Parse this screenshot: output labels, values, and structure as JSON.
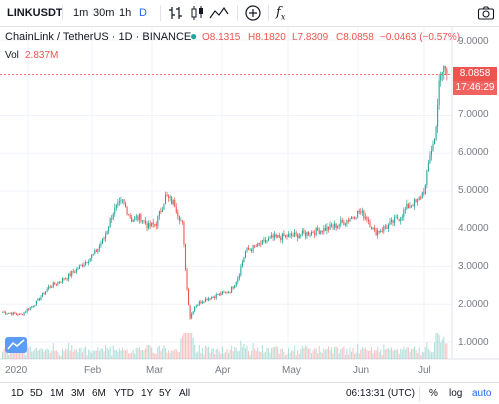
{
  "toolbar": {
    "symbol": "LINKUSDT",
    "intervals": [
      "1m",
      "30m",
      "1h"
    ],
    "interval_dropdown": "D",
    "fx_label": "f"
  },
  "legend": {
    "title": "ChainLink / TetherUS · 1D · BINANCE",
    "open": "O8.1315",
    "high": "H8.1820",
    "low": "L7.8309",
    "close": "C8.0858",
    "change": "−0.0463 (−0.57%)",
    "vol_label": "Vol",
    "vol_value": "2.837M"
  },
  "price_axis": {
    "ticks": [
      "9.0000",
      "8.0000",
      "7.0000",
      "6.0000",
      "5.0000",
      "4.0000",
      "3.0000",
      "2.0000",
      "1.0000"
    ],
    "current_price": "8.0858",
    "countdown": "17:46:29"
  },
  "time_axis": {
    "labels": [
      "2020",
      "Feb",
      "Mar",
      "Apr",
      "May",
      "Jun",
      "Jul"
    ]
  },
  "bottom_bar": {
    "ranges": [
      "1D",
      "5D",
      "1M",
      "3M",
      "6M",
      "YTD",
      "1Y",
      "5Y",
      "All"
    ],
    "clock": "06:13:31 (UTC)",
    "percent": "%",
    "log": "log",
    "auto": "auto"
  },
  "colors": {
    "up": "#26a69a",
    "down": "#ef5350",
    "accent": "#2962ff",
    "text": "#131722",
    "muted": "#787b86"
  },
  "chart_data": {
    "type": "candlestick",
    "title": "ChainLink / TetherUS · 1D · BINANCE",
    "ylim": [
      0.6,
      9.4
    ],
    "x_labels": [
      "2020",
      "Feb",
      "Mar",
      "Apr",
      "May",
      "Jun",
      "Jul"
    ],
    "series": [
      {
        "name": "price",
        "anchors": [
          [
            0,
            1.8
          ],
          [
            12,
            1.72
          ],
          [
            22,
            2.05
          ],
          [
            30,
            2.45
          ],
          [
            42,
            2.72
          ],
          [
            52,
            3.05
          ],
          [
            60,
            3.35
          ],
          [
            66,
            3.75
          ],
          [
            72,
            4.45
          ],
          [
            78,
            4.72
          ],
          [
            84,
            4.25
          ],
          [
            90,
            4.3
          ],
          [
            95,
            4.05
          ],
          [
            100,
            4.15
          ],
          [
            106,
            4.85
          ],
          [
            112,
            4.65
          ],
          [
            117,
            4.1
          ],
          [
            120,
            2.4
          ],
          [
            122,
            1.65
          ],
          [
            125,
            1.95
          ],
          [
            130,
            2.1
          ],
          [
            140,
            2.25
          ],
          [
            148,
            2.35
          ],
          [
            153,
            2.7
          ],
          [
            158,
            3.4
          ],
          [
            166,
            3.55
          ],
          [
            175,
            3.75
          ],
          [
            185,
            3.8
          ],
          [
            195,
            3.85
          ],
          [
            205,
            3.95
          ],
          [
            215,
            4.05
          ],
          [
            225,
            4.25
          ],
          [
            232,
            4.45
          ],
          [
            237,
            4.3
          ],
          [
            242,
            3.9
          ],
          [
            250,
            4.05
          ],
          [
            258,
            4.3
          ],
          [
            265,
            4.65
          ],
          [
            270,
            4.7
          ],
          [
            275,
            5.1
          ],
          [
            278,
            6.0
          ],
          [
            281,
            6.35
          ],
          [
            284,
            7.8
          ],
          [
            287,
            8.3
          ],
          [
            289,
            8.09
          ]
        ]
      }
    ]
  }
}
